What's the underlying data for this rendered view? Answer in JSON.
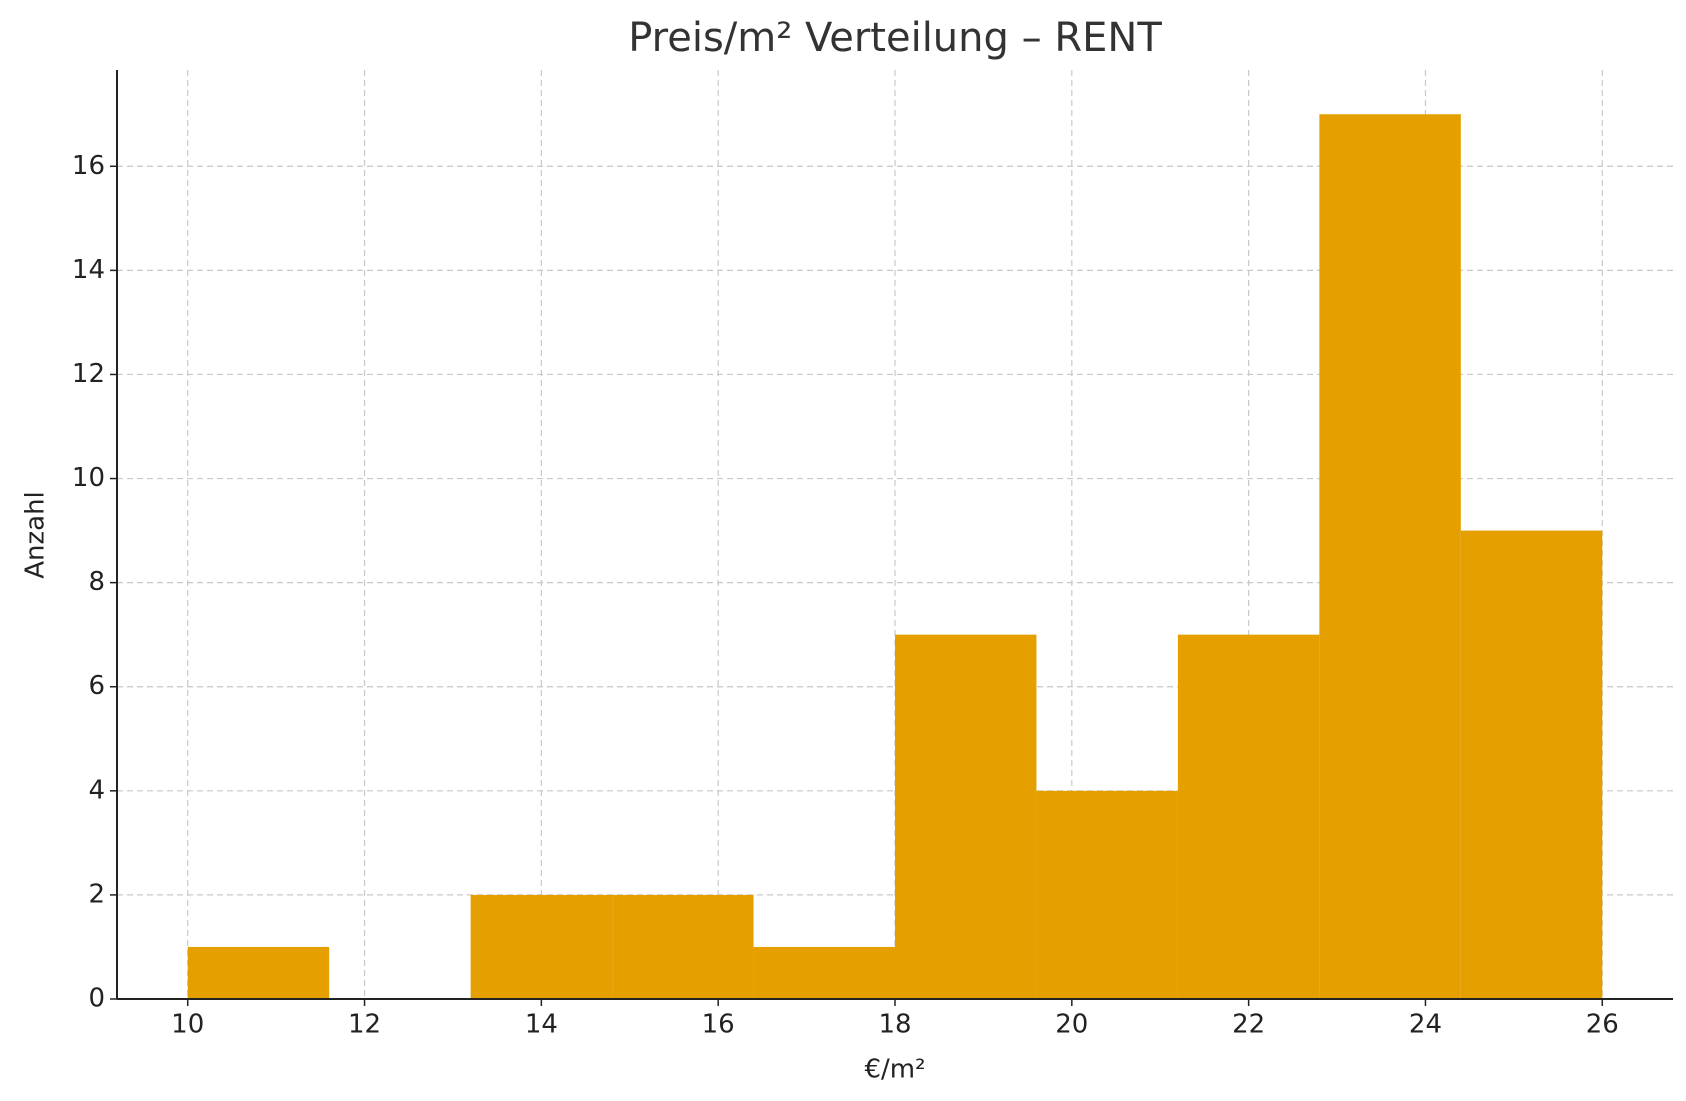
{
  "chart_data": {
    "type": "histogram",
    "title": "Preis/m² Verteilung – RENT",
    "x_label": "€/m²",
    "y_label": "Anzahl",
    "bins": [
      10,
      11.6,
      13.2,
      14.8,
      16.4,
      18,
      19.6,
      21.2,
      22.8,
      24.4,
      26
    ],
    "counts": [
      1,
      0,
      2,
      2,
      1,
      7,
      4,
      7,
      17,
      9
    ],
    "color": "#e5a000",
    "xlim": [
      9.2,
      26.8
    ],
    "ylim": [
      0,
      17.85
    ],
    "xticks": [
      10,
      12,
      14,
      16,
      18,
      20,
      22,
      24,
      26
    ],
    "yticks": [
      0,
      2,
      4,
      6,
      8,
      10,
      12,
      14,
      16
    ],
    "grid": true
  }
}
